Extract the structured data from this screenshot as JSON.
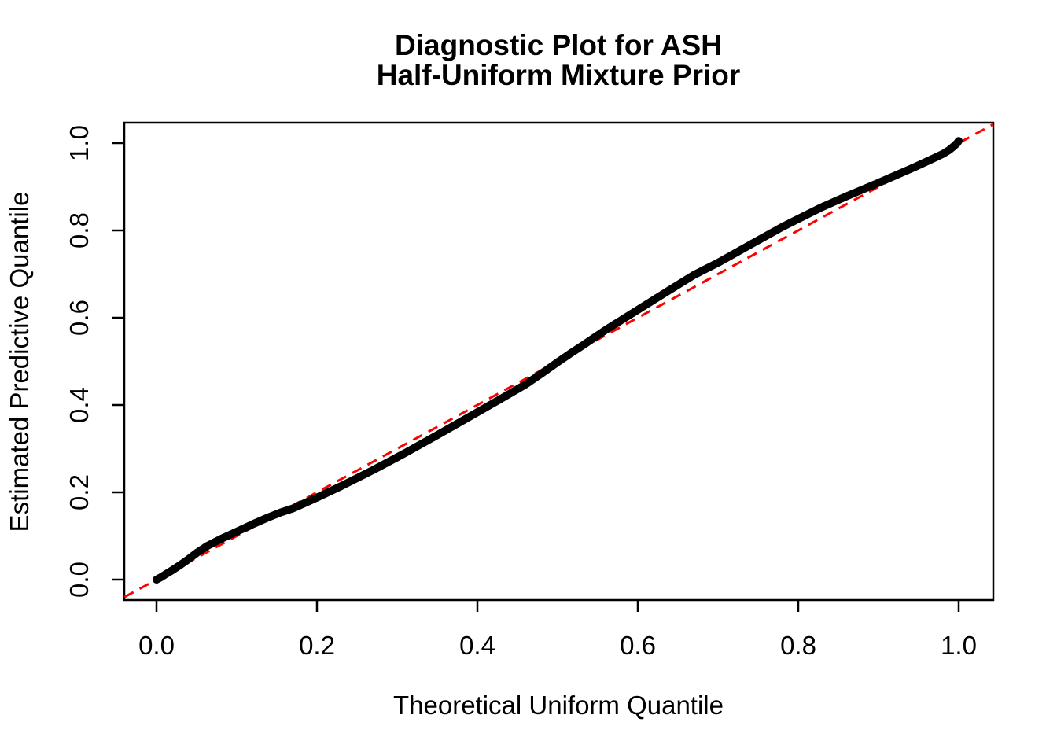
{
  "title": {
    "line1": "Diagnostic Plot for ASH",
    "line2": "Half-Uniform Mixture Prior"
  },
  "axes": {
    "x_label": "Theoretical Uniform Quantile",
    "y_label": "Estimated Predictive Quantile"
  },
  "colors": {
    "curve": "#000000",
    "reference_line": "#FF0000",
    "axis": "#000000",
    "background": "#FFFFFF"
  },
  "chart_data": {
    "type": "scatter",
    "title": "Diagnostic Plot for ASH\nHalf-Uniform Mixture Prior",
    "xlabel": "Theoretical Uniform Quantile",
    "ylabel": "Estimated Predictive Quantile",
    "xlim": [
      -0.04,
      1.04
    ],
    "ylim": [
      -0.04,
      1.04
    ],
    "grid": false,
    "legend": "none",
    "x_ticks": {
      "values": [
        0.0,
        0.2,
        0.4,
        0.6,
        0.8,
        1.0
      ],
      "labels": [
        "0.0",
        "0.2",
        "0.4",
        "0.6",
        "0.8",
        "1.0"
      ]
    },
    "y_ticks": {
      "values": [
        0.0,
        0.2,
        0.4,
        0.6,
        0.8,
        1.0
      ],
      "labels": [
        "0.0",
        "0.2",
        "0.4",
        "0.6",
        "0.8",
        "1.0"
      ]
    },
    "series": [
      {
        "name": "estimated-predictive-quantiles",
        "style": "dense-points",
        "color": "#000000",
        "line_width": 10,
        "points": [
          [
            0.0,
            0.0
          ],
          [
            0.006,
            0.006
          ],
          [
            0.012,
            0.013
          ],
          [
            0.02,
            0.022
          ],
          [
            0.03,
            0.034
          ],
          [
            0.04,
            0.047
          ],
          [
            0.05,
            0.061
          ],
          [
            0.063,
            0.077
          ],
          [
            0.08,
            0.093
          ],
          [
            0.1,
            0.11
          ],
          [
            0.12,
            0.127
          ],
          [
            0.14,
            0.143
          ],
          [
            0.155,
            0.154
          ],
          [
            0.17,
            0.163
          ],
          [
            0.2,
            0.188
          ],
          [
            0.23,
            0.214
          ],
          [
            0.27,
            0.251
          ],
          [
            0.31,
            0.29
          ],
          [
            0.35,
            0.331
          ],
          [
            0.39,
            0.373
          ],
          [
            0.43,
            0.415
          ],
          [
            0.46,
            0.447
          ],
          [
            0.48,
            0.472
          ],
          [
            0.5,
            0.498
          ],
          [
            0.515,
            0.517
          ],
          [
            0.53,
            0.535
          ],
          [
            0.56,
            0.572
          ],
          [
            0.6,
            0.618
          ],
          [
            0.64,
            0.664
          ],
          [
            0.67,
            0.698
          ],
          [
            0.7,
            0.726
          ],
          [
            0.74,
            0.767
          ],
          [
            0.78,
            0.808
          ],
          [
            0.828,
            0.852
          ],
          [
            0.86,
            0.878
          ],
          [
            0.896,
            0.906
          ],
          [
            0.92,
            0.925
          ],
          [
            0.945,
            0.945
          ],
          [
            0.965,
            0.962
          ],
          [
            0.98,
            0.975
          ],
          [
            0.988,
            0.984
          ],
          [
            0.994,
            0.993
          ],
          [
            0.998,
            1.0
          ],
          [
            1.0,
            1.005
          ]
        ]
      },
      {
        "name": "reference-line-y-equals-x",
        "style": "dashed-line",
        "color": "#FF0000",
        "line_width": 3,
        "dash": [
          13,
          9
        ],
        "points": [
          [
            -0.04,
            -0.04
          ],
          [
            1.043,
            1.043
          ]
        ]
      }
    ]
  }
}
